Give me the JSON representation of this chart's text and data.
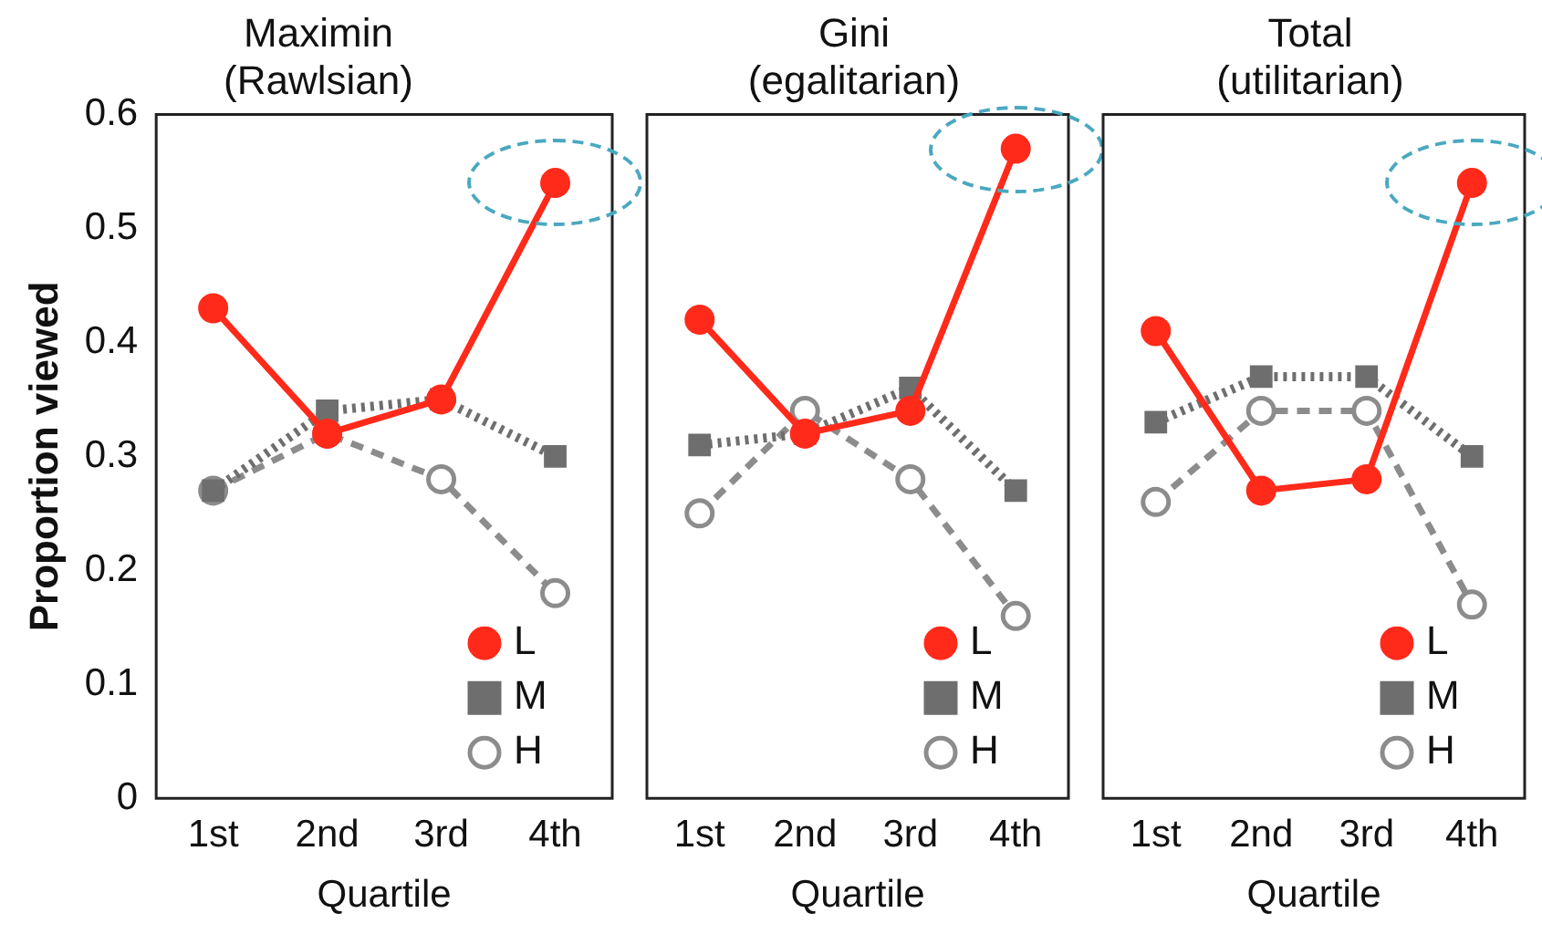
{
  "chart_data": [
    {
      "type": "line",
      "title": "Maximin (Rawlsian)",
      "xlabel": "Quartile",
      "ylabel": "Proportion viewed",
      "categories": [
        "1st",
        "2nd",
        "3rd",
        "4th"
      ],
      "ylim": [
        0,
        0.6
      ],
      "yticks": [
        0,
        0.1,
        0.2,
        0.3,
        0.4,
        0.5,
        0.6
      ],
      "grid": false,
      "legend": "bottom right",
      "series": [
        {
          "name": "L",
          "color": "#ff2a1a",
          "values": [
            0.43,
            0.32,
            0.35,
            0.54
          ],
          "marker": "circle",
          "line_style": "solid"
        },
        {
          "name": "M",
          "color": "#6e6e6e",
          "values": [
            0.27,
            0.34,
            0.35,
            0.3
          ],
          "marker": "square",
          "line_style": "dotted"
        },
        {
          "name": "H",
          "color": "#8c8c8c",
          "values": [
            0.27,
            0.32,
            0.28,
            0.18
          ],
          "marker": "circle",
          "line_style": "dashed"
        }
      ]
    },
    {
      "type": "line",
      "title": "Gini (egalitarian)",
      "xlabel": "Quartile",
      "categories": [
        "1st",
        "2nd",
        "3rd",
        "4th"
      ],
      "ylim": [
        0,
        0.6
      ],
      "yticks": [
        0,
        0.1,
        0.2,
        0.3,
        0.4,
        0.5,
        0.6
      ],
      "tick_labels": "x",
      "grid": false,
      "legend": "bottom right",
      "series": [
        {
          "name": "L",
          "color": "#ff2a1a",
          "values": [
            0.42,
            0.32,
            0.34,
            0.57
          ],
          "marker": "circle",
          "line_style": "solid"
        },
        {
          "name": "M",
          "color": "#6e6e6e",
          "values": [
            0.31,
            0.32,
            0.36,
            0.27
          ],
          "marker": "square",
          "line_style": "dotted"
        },
        {
          "name": "H",
          "color": "#8c8c8c",
          "values": [
            0.25,
            0.34,
            0.28,
            0.16
          ],
          "marker": "circle",
          "line_style": "dashed"
        }
      ]
    },
    {
      "type": "line",
      "title": "Total (utilitarian)",
      "xlabel": "Quartile",
      "categories": [
        "1st",
        "2nd",
        "3rd",
        "4th"
      ],
      "ylim": [
        0,
        0.6
      ],
      "yticks": [
        0,
        0.1,
        0.2,
        0.3,
        0.4,
        0.5,
        0.6
      ],
      "tick_labels": "x",
      "grid": false,
      "legend": "bottom right",
      "series": [
        {
          "name": "L",
          "color": "#ff2a1a",
          "values": [
            0.41,
            0.27,
            0.28,
            0.54
          ],
          "marker": "circle",
          "line_style": "solid"
        },
        {
          "name": "M",
          "color": "#6e6e6e",
          "values": [
            0.33,
            0.37,
            0.37,
            0.3
          ],
          "marker": "square",
          "line_style": "dotted"
        },
        {
          "name": "H",
          "color": "#8c8c8c",
          "values": [
            0.26,
            0.34,
            0.34,
            0.17
          ],
          "marker": "circle",
          "line_style": "dashed"
        }
      ]
    }
  ]
}
